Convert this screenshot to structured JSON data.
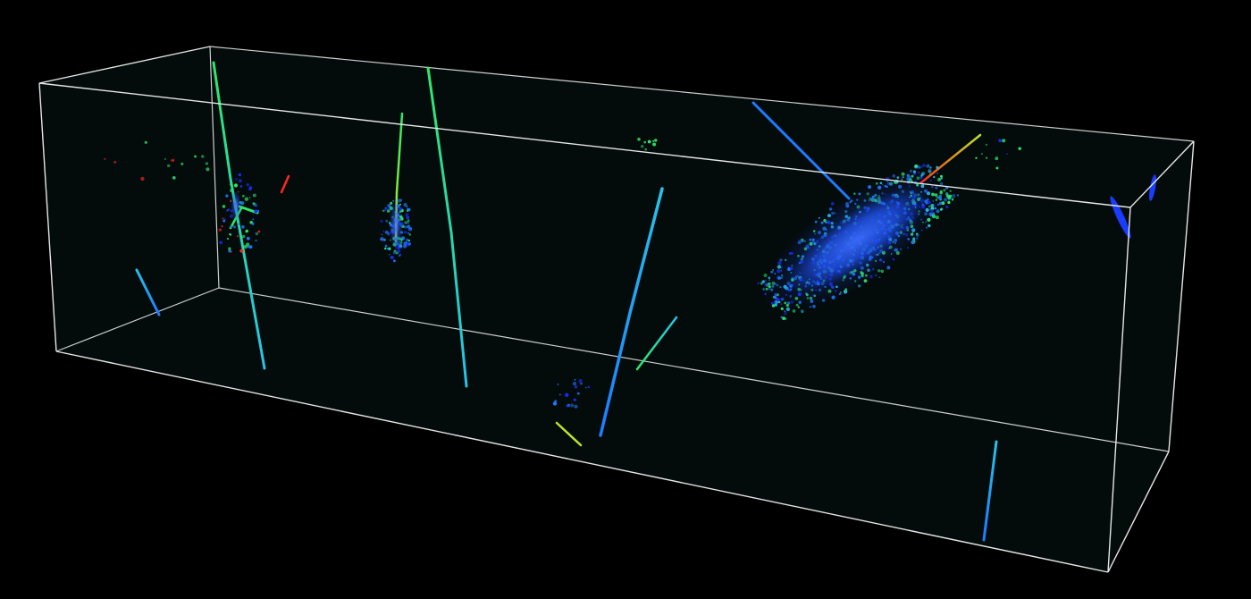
{
  "scene": {
    "background_color": "#000000",
    "volume_fill_color": "#050d0d",
    "box_edge_color": "#d8d8d8",
    "colormap": [
      "#1a2cff",
      "#1e7bff",
      "#26c4e8",
      "#2ee86a",
      "#b8e62a",
      "#ff2a1a"
    ]
  }
}
